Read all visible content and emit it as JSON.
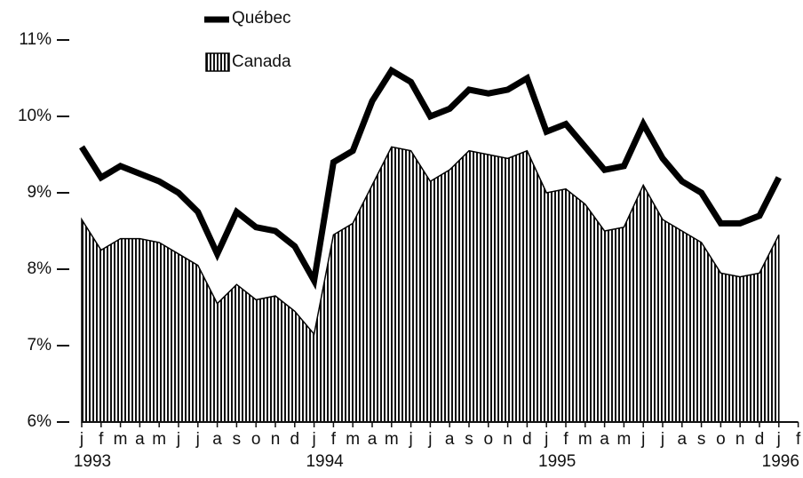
{
  "chart_data": {
    "type": "line-area",
    "categories": [
      "j",
      "f",
      "m",
      "a",
      "m",
      "j",
      "j",
      "a",
      "s",
      "o",
      "n",
      "d",
      "j",
      "f",
      "m",
      "a",
      "m",
      "j",
      "j",
      "a",
      "s",
      "o",
      "n",
      "d",
      "j",
      "f",
      "m",
      "a",
      "m",
      "j",
      "j",
      "a",
      "s",
      "o",
      "n",
      "d",
      "j",
      "f"
    ],
    "years": [
      "1993",
      "1994",
      "1995",
      "1996"
    ],
    "series": [
      {
        "name": "Québec",
        "color": "#000000",
        "values": [
          9.6,
          9.2,
          9.35,
          9.25,
          9.15,
          9.0,
          8.75,
          8.2,
          8.75,
          8.55,
          8.5,
          8.3,
          7.85,
          9.4,
          9.55,
          10.2,
          10.6,
          10.45,
          10.0,
          10.1,
          10.35,
          10.3,
          10.35,
          10.5,
          9.8,
          9.9,
          9.6,
          9.3,
          9.35,
          9.9,
          9.45,
          9.15,
          9.0,
          8.6,
          8.6,
          8.7,
          9.2,
          null
        ]
      },
      {
        "name": "Canada",
        "color": "#000000",
        "values": [
          8.65,
          8.25,
          8.4,
          8.4,
          8.35,
          8.2,
          8.05,
          7.55,
          7.8,
          7.6,
          7.65,
          7.45,
          7.15,
          8.45,
          8.6,
          9.1,
          9.6,
          9.55,
          9.15,
          9.3,
          9.55,
          9.5,
          9.45,
          9.55,
          9.0,
          9.05,
          8.85,
          8.5,
          8.55,
          9.1,
          8.65,
          8.5,
          8.35,
          7.95,
          7.9,
          7.95,
          8.45,
          null
        ]
      }
    ],
    "ylim": [
      6,
      11
    ],
    "yticks": [
      {
        "value": 6,
        "label": "6%"
      },
      {
        "value": 7,
        "label": "7%"
      },
      {
        "value": 8,
        "label": "8%"
      },
      {
        "value": 9,
        "label": "9%"
      },
      {
        "value": 10,
        "label": "10%"
      },
      {
        "value": 11,
        "label": "11%"
      }
    ]
  }
}
